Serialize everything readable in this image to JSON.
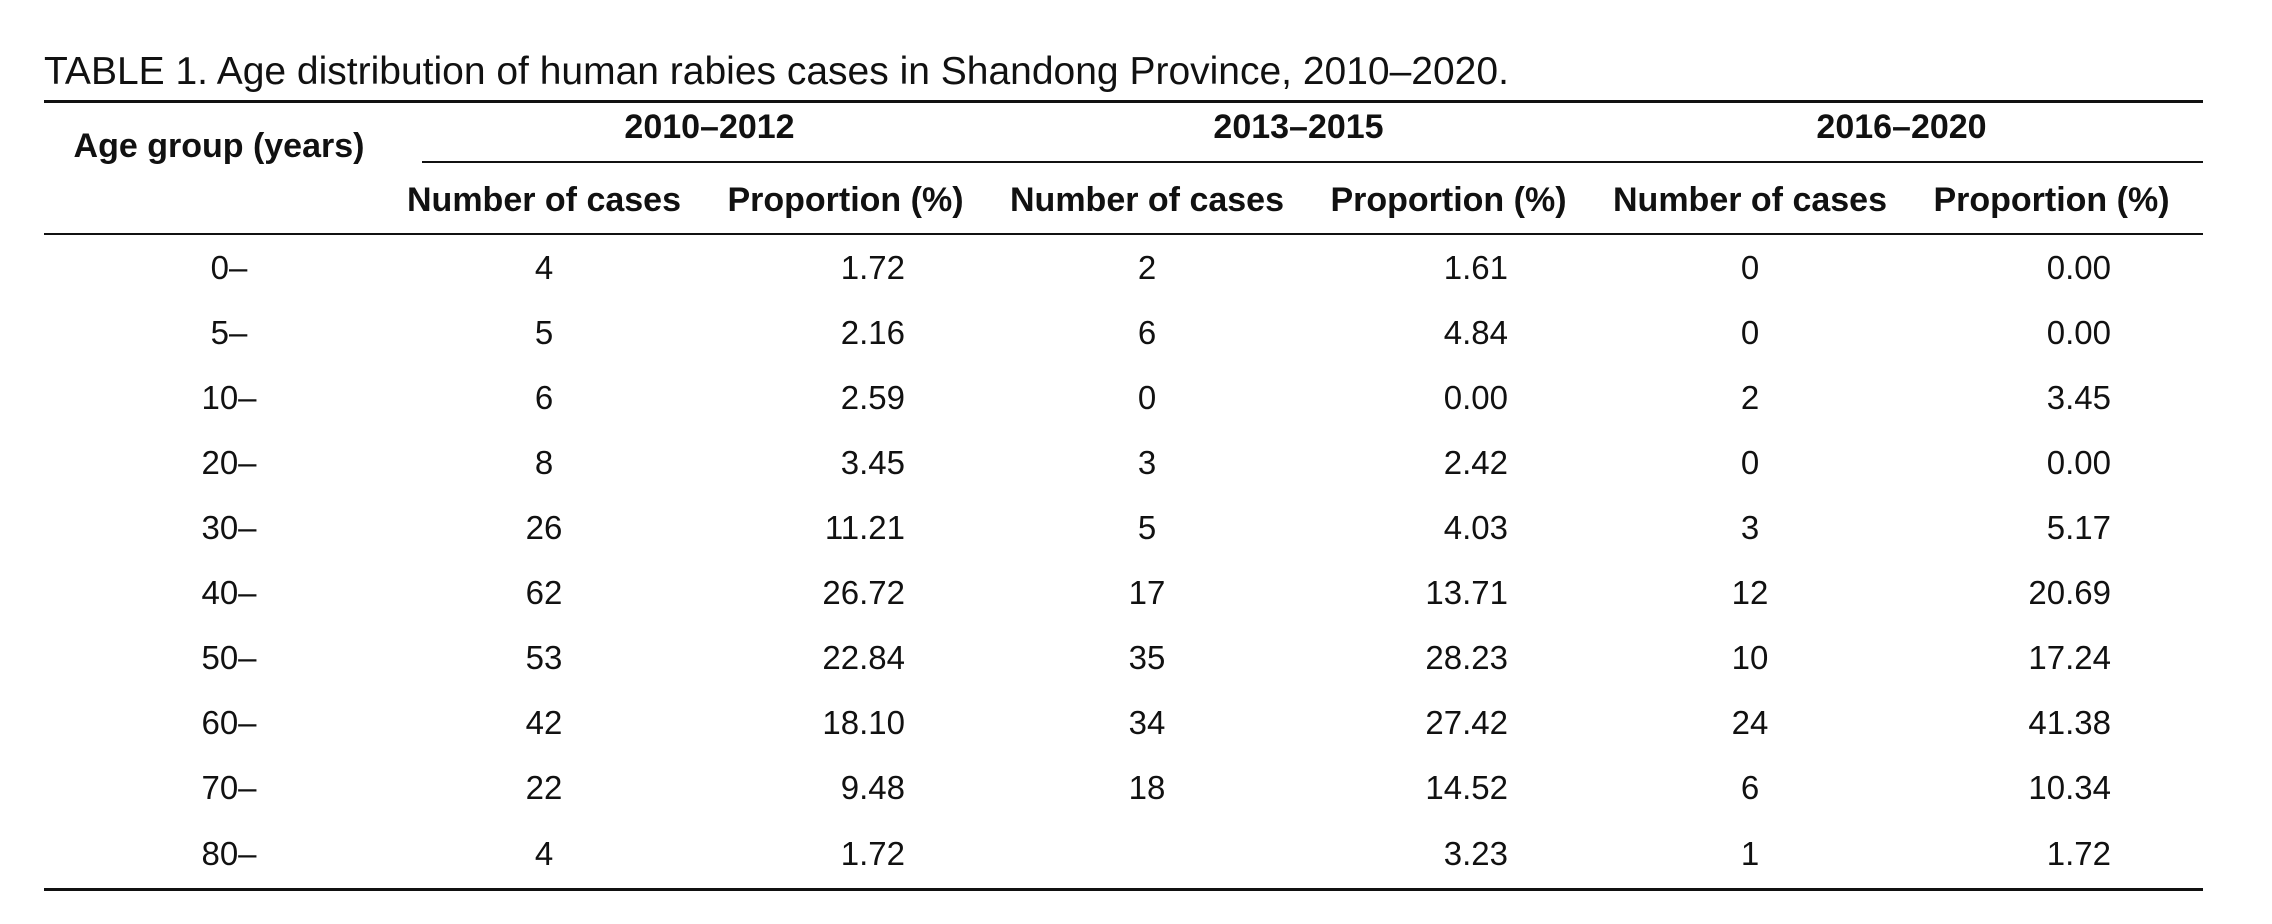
{
  "caption": "TABLE 1. Age distribution of human rabies cases in Shandong Province, 2010–2020.",
  "header": {
    "age_group": "Age group (years)",
    "periods": [
      "2010–2012",
      "2013–2015",
      "2016–2020"
    ],
    "number_label": "Number of cases",
    "proportion_label": "Proportion (%)"
  },
  "rows": [
    {
      "age": "0–",
      "n1": "4",
      "p1": "1.72",
      "n2": "2",
      "p2": "1.61",
      "n3": "0",
      "p3": "0.00"
    },
    {
      "age": "5–",
      "n1": "5",
      "p1": "2.16",
      "n2": "6",
      "p2": "4.84",
      "n3": "0",
      "p3": "0.00"
    },
    {
      "age": "10–",
      "n1": "6",
      "p1": "2.59",
      "n2": "0",
      "p2": "0.00",
      "n3": "2",
      "p3": "3.45"
    },
    {
      "age": "20–",
      "n1": "8",
      "p1": "3.45",
      "n2": "3",
      "p2": "2.42",
      "n3": "0",
      "p3": "0.00"
    },
    {
      "age": "30–",
      "n1": "26",
      "p1": "11.21",
      "n2": "5",
      "p2": "4.03",
      "n3": "3",
      "p3": "5.17"
    },
    {
      "age": "40–",
      "n1": "62",
      "p1": "26.72",
      "n2": "17",
      "p2": "13.71",
      "n3": "12",
      "p3": "20.69"
    },
    {
      "age": "50–",
      "n1": "53",
      "p1": "22.84",
      "n2": "35",
      "p2": "28.23",
      "n3": "10",
      "p3": "17.24"
    },
    {
      "age": "60–",
      "n1": "42",
      "p1": "18.10",
      "n2": "34",
      "p2": "27.42",
      "n3": "24",
      "p3": "41.38"
    },
    {
      "age": "70–",
      "n1": "22",
      "p1": "9.48",
      "n2": "18",
      "p2": "14.52",
      "n3": "6",
      "p3": "10.34"
    },
    {
      "age": "80–",
      "n1": "4",
      "p1": "1.72",
      "n2": "",
      "p2": "3.23",
      "n3": "1",
      "p3": "1.72"
    }
  ]
}
